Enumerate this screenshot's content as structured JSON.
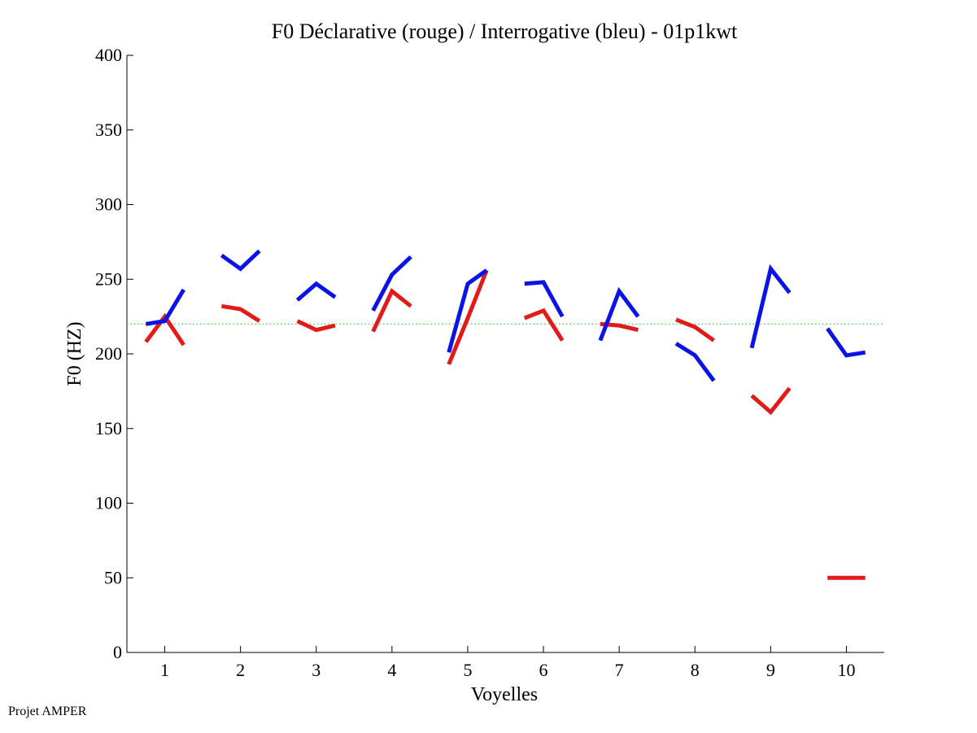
{
  "chart_data": {
    "type": "line",
    "title": "F0 Déclarative (rouge) / Interrogative (bleu) - 01p1kwt",
    "xlabel": "Voyelles",
    "ylabel": "F0 (HZ)",
    "xlim": [
      0.5,
      10.5
    ],
    "ylim": [
      0,
      400
    ],
    "xticks": [
      "1",
      "2",
      "3",
      "4",
      "5",
      "6",
      "7",
      "8",
      "9",
      "10"
    ],
    "yticks": [
      "0",
      "50",
      "100",
      "150",
      "200",
      "250",
      "300",
      "350",
      "400"
    ],
    "grid": false,
    "reference_line": {
      "y": 220,
      "color": "#2ecc2e",
      "style": "dotted"
    },
    "series": [
      {
        "key": "declarative",
        "color": "#e31a1a",
        "segments": [
          {
            "vowel": 1,
            "x": [
              0.75,
              1.0,
              1.25
            ],
            "y": [
              208,
              225,
              206
            ]
          },
          {
            "vowel": 2,
            "x": [
              1.75,
              2.0,
              2.25
            ],
            "y": [
              232,
              230,
              222
            ]
          },
          {
            "vowel": 3,
            "x": [
              2.75,
              3.0,
              3.25
            ],
            "y": [
              222,
              216,
              219
            ]
          },
          {
            "vowel": 4,
            "x": [
              3.75,
              4.0,
              4.25
            ],
            "y": [
              215,
              242,
              232
            ]
          },
          {
            "vowel": 5,
            "x": [
              4.75,
              5.0,
              5.25
            ],
            "y": [
              193,
              224,
              256
            ]
          },
          {
            "vowel": 6,
            "x": [
              5.75,
              6.0,
              6.25
            ],
            "y": [
              224,
              229,
              209
            ]
          },
          {
            "vowel": 7,
            "x": [
              6.75,
              7.0,
              7.25
            ],
            "y": [
              220,
              219,
              216
            ]
          },
          {
            "vowel": 8,
            "x": [
              7.75,
              8.0,
              8.25
            ],
            "y": [
              223,
              218,
              209
            ]
          },
          {
            "vowel": 9,
            "x": [
              8.75,
              9.0,
              9.25
            ],
            "y": [
              172,
              161,
              177
            ]
          },
          {
            "vowel": 10,
            "x": [
              9.75,
              10.0,
              10.25
            ],
            "y": [
              50,
              50,
              50
            ]
          }
        ]
      },
      {
        "key": "interrogative",
        "color": "#0a14e6",
        "segments": [
          {
            "vowel": 1,
            "x": [
              0.75,
              1.0,
              1.25
            ],
            "y": [
              220,
              222,
              243
            ]
          },
          {
            "vowel": 2,
            "x": [
              1.75,
              2.0,
              2.25
            ],
            "y": [
              266,
              257,
              269
            ]
          },
          {
            "vowel": 3,
            "x": [
              2.75,
              3.0,
              3.25
            ],
            "y": [
              236,
              247,
              238
            ]
          },
          {
            "vowel": 4,
            "x": [
              3.75,
              4.0,
              4.25
            ],
            "y": [
              229,
              253,
              265
            ]
          },
          {
            "vowel": 5,
            "x": [
              4.75,
              5.0,
              5.25
            ],
            "y": [
              201,
              247,
              256
            ]
          },
          {
            "vowel": 6,
            "x": [
              5.75,
              6.0,
              6.25
            ],
            "y": [
              247,
              248,
              225
            ]
          },
          {
            "vowel": 7,
            "x": [
              6.75,
              7.0,
              7.25
            ],
            "y": [
              209,
              242,
              225
            ]
          },
          {
            "vowel": 8,
            "x": [
              7.75,
              8.0,
              8.25
            ],
            "y": [
              207,
              199,
              182
            ]
          },
          {
            "vowel": 9,
            "x": [
              8.75,
              9.0,
              9.25
            ],
            "y": [
              204,
              257,
              241
            ]
          },
          {
            "vowel": 10,
            "x": [
              9.75,
              10.0,
              10.25
            ],
            "y": [
              217,
              199,
              201
            ]
          }
        ]
      }
    ]
  },
  "footer": {
    "note": "Projet AMPER"
  }
}
